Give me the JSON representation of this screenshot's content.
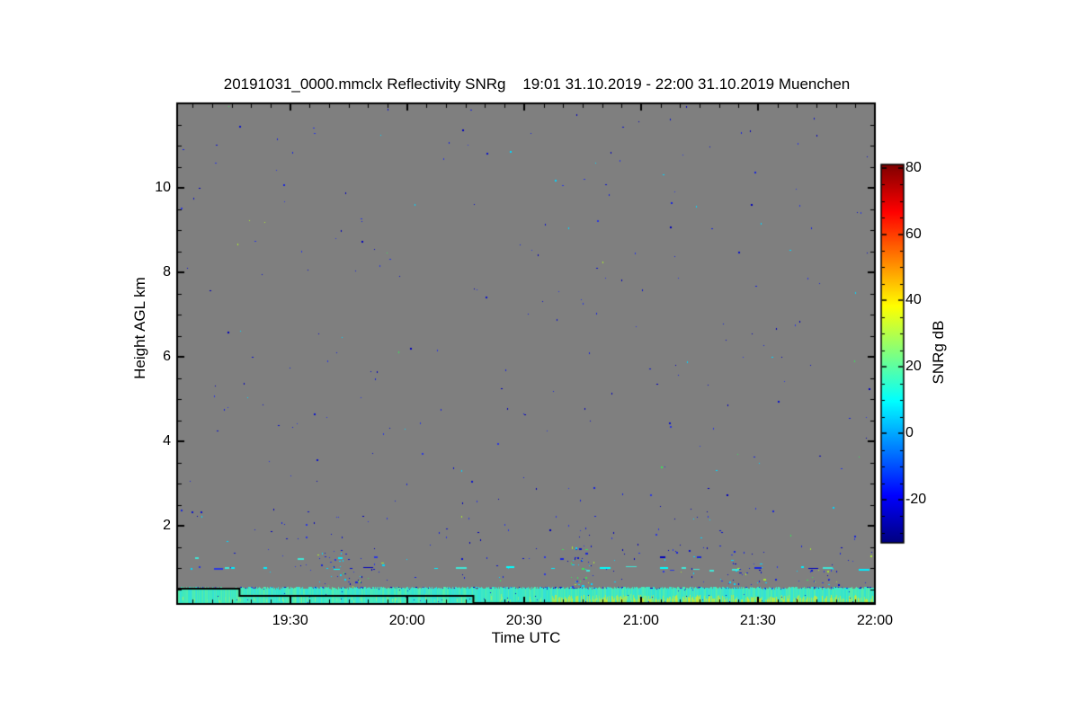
{
  "page": {
    "background": "#ffffff"
  },
  "chart_data": {
    "type": "heatmap",
    "title": "20191031_0000.mmclx Reflectivity SNRg    19:01 31.10.2019 - 22:00 31.10.2019 Muenchen",
    "xlabel": "Time UTC",
    "ylabel": "Height AGL km",
    "colorbar_label": "SNRg dB",
    "time_start_label": "19:01",
    "time_end_label": "22:00",
    "duration_minutes": 179,
    "x_ticks": [
      {
        "label": "19:30",
        "minute": 29
      },
      {
        "label": "20:00",
        "minute": 59
      },
      {
        "label": "20:30",
        "minute": 89
      },
      {
        "label": "21:00",
        "minute": 119
      },
      {
        "label": "21:30",
        "minute": 149
      },
      {
        "label": "22:00",
        "minute": 179
      }
    ],
    "x_minor_step_minutes": 5,
    "y_axis": {
      "range_km": [
        0.15,
        12.0
      ],
      "ticks_km": [
        2,
        4,
        6,
        8,
        10
      ],
      "minor_step_km": 0.5
    },
    "colorbar": {
      "range_db": [
        -33,
        81
      ],
      "ticks_db": [
        80,
        60,
        40,
        20,
        0,
        -20
      ],
      "minor_step_db": 5,
      "colormap": "jet",
      "gradient_stops": [
        {
          "frac": 0.0,
          "color": "#00007f"
        },
        {
          "frac": 0.125,
          "color": "#0000ff"
        },
        {
          "frac": 0.375,
          "color": "#00ffff"
        },
        {
          "frac": 0.625,
          "color": "#ffff00"
        },
        {
          "frac": 0.875,
          "color": "#ff0000"
        },
        {
          "frac": 1.0,
          "color": "#7f0000"
        }
      ]
    },
    "colors": {
      "plot_background": "#7f7f7f",
      "frame": "#000000",
      "speck_navy": [
        "#0000bb",
        "#0a14cc",
        "#1724dd",
        "#2a38e0"
      ],
      "speck_cyan": "#00d8ff",
      "speck_green": "#3ce05a",
      "speck_chartreuse": "#a8e832",
      "band_cyan": [
        "#2fe4cf",
        "#3ae8c4",
        "#49ebb5",
        "#35e0d8",
        "#55eda9",
        "#40e6c6"
      ],
      "band_green": [
        "#74ef92",
        "#8cef7c"
      ],
      "band_yellow": [
        "#aee84f",
        "#c9e838",
        "#9ce863"
      ],
      "dash_cyan": [
        "#00eeff",
        "#40e8d8",
        "#00ffff"
      ]
    },
    "render": {
      "seed": 20191031,
      "noise_specks": {
        "count_full": 270,
        "count_low_extra": 95,
        "low_extra_above_km": 0.6,
        "low_extra_below_km": 2.4
      },
      "speckle_line": {
        "km": 0.52,
        "coverage": 0.8
      },
      "dash_rows": [
        {
          "km": 0.47,
          "coverage_left": 0.28,
          "coverage_right": 0.45,
          "len_min": 4,
          "len_max": 30,
          "navy_share": 0.08,
          "jitter": 1
        },
        {
          "km": 1.0,
          "coverage_left": 0.09,
          "coverage_right": 0.17,
          "len_min": 3,
          "len_max": 13,
          "navy_share": 0.25,
          "jitter": 2
        },
        {
          "km": 1.25,
          "coverage_left": 0.02,
          "coverage_right": 0.04,
          "len_min": 3,
          "len_max": 8,
          "navy_share": 0.7,
          "jitter": 1
        }
      ],
      "streaks": [
        {
          "minute_from": 36,
          "minute_to": 54,
          "km_from": 0.55,
          "km_to": 1.85,
          "count": 50
        },
        {
          "minute_from": 101,
          "minute_to": 107,
          "km_from": 0.57,
          "km_to": 2.28,
          "count": 40
        },
        {
          "minute_from": 139,
          "minute_to": 155,
          "km_from": 0.6,
          "km_to": 1.43,
          "count": 28
        },
        {
          "minute_from": 159,
          "minute_to": 170,
          "km_from": 0.6,
          "km_to": 1.2,
          "count": 22
        }
      ],
      "surface_band": {
        "km_top": 0.53,
        "km_bottom": 0.17,
        "yellow_from_minute": 96,
        "yellow_prob": 0.55,
        "green_prob": 0.15,
        "navy_sprinkle_prob": 0.07
      },
      "cloud_base_line_km": [
        [
          0,
          0.51
        ],
        [
          16,
          0.51
        ],
        [
          16,
          0.34
        ],
        [
          76,
          0.34
        ],
        [
          76,
          0.17
        ],
        [
          179,
          0.17
        ]
      ]
    }
  }
}
